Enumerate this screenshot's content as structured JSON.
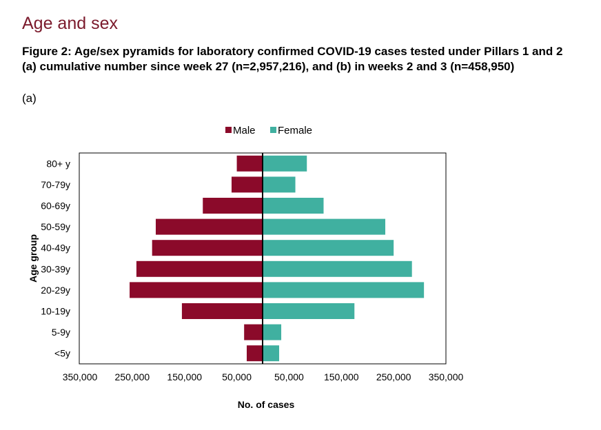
{
  "section_title": "Age and sex",
  "figure_caption": "Figure 2: Age/sex pyramids for laboratory confirmed COVID-19 cases tested under Pillars 1 and 2 (a) cumulative number since week 27 (n=2,957,216), and (b) in weeks 2 and 3 (n=458,950)",
  "panel_label": "(a)",
  "chart_data": {
    "type": "bar",
    "orientation": "horizontal-pyramid",
    "categories": [
      "80+ y",
      "70-79y",
      "60-69y",
      "50-59y",
      "40-49y",
      "30-39y",
      "20-29y",
      "10-19y",
      "5-9y",
      "<5y"
    ],
    "series": [
      {
        "name": "Male",
        "color": "#8b0a2a",
        "values": [
          50000,
          60000,
          115000,
          205000,
          212000,
          242000,
          255000,
          155000,
          36000,
          31000
        ]
      },
      {
        "name": "Female",
        "color": "#40b0a0",
        "values": [
          84000,
          62000,
          116000,
          234000,
          250000,
          285000,
          308000,
          175000,
          35000,
          31000
        ]
      }
    ],
    "xlabel": "No. of cases",
    "ylabel": "Age group",
    "xlim": [
      -350000,
      350000
    ],
    "xticks": [
      -350000,
      -250000,
      -150000,
      -50000,
      50000,
      150000,
      250000,
      350000
    ],
    "xtick_labels": [
      "350,000",
      "250,000",
      "150,000",
      "50,000",
      "50,000",
      "150,000",
      "250,000",
      "350,000"
    ],
    "legend_position": "top",
    "grid": false
  }
}
